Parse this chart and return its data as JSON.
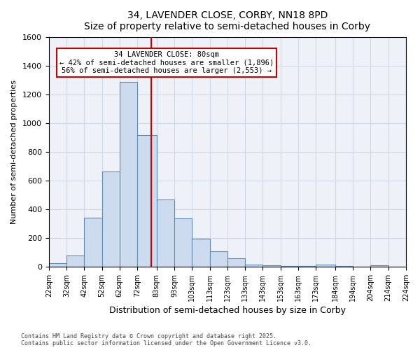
{
  "title": "34, LAVENDER CLOSE, CORBY, NN18 8PD",
  "subtitle": "Size of property relative to semi-detached houses in Corby",
  "xlabel": "Distribution of semi-detached houses by size in Corby",
  "ylabel": "Number of semi-detached properties",
  "footnote1": "Contains HM Land Registry data © Crown copyright and database right 2025.",
  "footnote2": "Contains public sector information licensed under the Open Government Licence v3.0.",
  "annotation_line1": "34 LAVENDER CLOSE: 80sqm",
  "annotation_line2": "← 42% of semi-detached houses are smaller (1,896)",
  "annotation_line3": "56% of semi-detached houses are larger (2,553) →",
  "property_size": 80,
  "bar_color": "#ccdcee",
  "bar_edge_color": "#5c8ab0",
  "vline_color": "#cc0000",
  "annotation_box_color": "#cc0000",
  "ylim": [
    0,
    1600
  ],
  "bin_edges": [
    22,
    32,
    42,
    52,
    62,
    72,
    83,
    93,
    103,
    113,
    123,
    133,
    143,
    153,
    163,
    173,
    184,
    194,
    204,
    214,
    224
  ],
  "bin_labels": [
    "22sqm",
    "32sqm",
    "42sqm",
    "52sqm",
    "62sqm",
    "72sqm",
    "83sqm",
    "93sqm",
    "103sqm",
    "113sqm",
    "123sqm",
    "133sqm",
    "143sqm",
    "153sqm",
    "163sqm",
    "173sqm",
    "184sqm",
    "194sqm",
    "204sqm",
    "214sqm",
    "224sqm"
  ],
  "counts": [
    25,
    80,
    340,
    665,
    1290,
    920,
    470,
    335,
    195,
    105,
    60,
    15,
    10,
    5,
    5,
    15,
    5,
    0,
    10,
    0
  ],
  "grid_color": "#d0d8e4",
  "background_color": "#eef2f8"
}
